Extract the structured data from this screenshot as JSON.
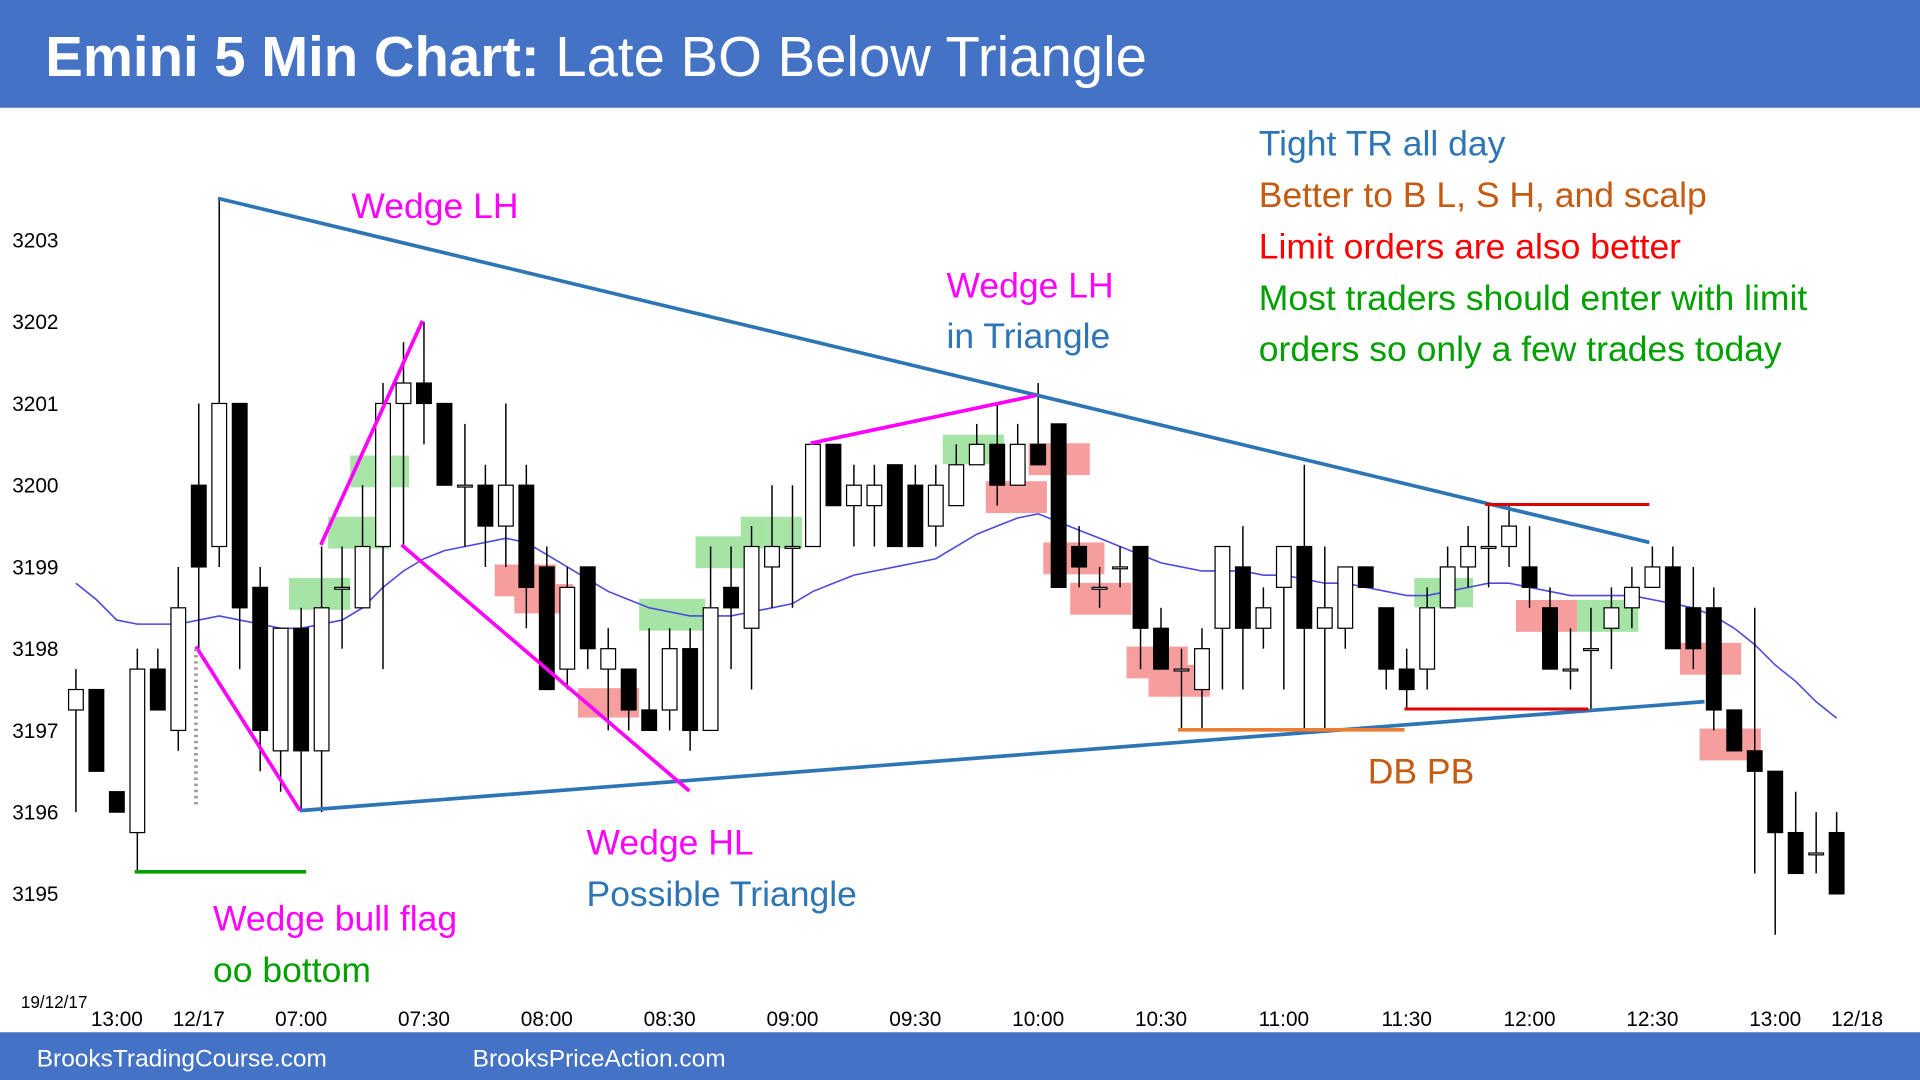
{
  "chart_data": {
    "type": "candlestick",
    "title": "Emini 5 Min Chart:",
    "subtitle": "Late BO Below Triangle",
    "date_label": "19/12/17",
    "footer": [
      "BrooksTradingCourse.com",
      "BrooksPriceAction.com"
    ],
    "annotations": [
      "Wedge LH",
      "Wedge LH",
      "in Triangle",
      "Tight TR all day",
      "Better to B L, S H, and scalp",
      "Limit orders are also better",
      "Most traders should enter with limit",
      "orders so only a few trades today",
      "DB PB",
      "Wedge HL",
      "Possible Triangle",
      "Wedge bull flag",
      "oo bottom"
    ],
    "categories": [
      null,
      null,
      "13:00",
      null,
      null,
      null,
      "12/17",
      null,
      null,
      null,
      null,
      "07:00",
      null,
      null,
      null,
      null,
      null,
      "07:30",
      null,
      null,
      null,
      null,
      null,
      "08:00",
      null,
      null,
      null,
      null,
      null,
      "08:30",
      null,
      null,
      null,
      null,
      null,
      "09:00",
      null,
      null,
      null,
      null,
      null,
      "09:30",
      null,
      null,
      null,
      null,
      null,
      "10:00",
      null,
      null,
      null,
      null,
      null,
      "10:30",
      null,
      null,
      null,
      null,
      null,
      "11:00",
      null,
      null,
      null,
      null,
      null,
      "11:30",
      null,
      null,
      null,
      null,
      null,
      "12:00",
      null,
      null,
      null,
      null,
      null,
      "12:30",
      null,
      null,
      null,
      null,
      null,
      "13:00",
      null,
      null,
      null,
      "12/18"
    ],
    "open": [
      3197.25,
      3197.5,
      3196.25,
      3195.75,
      3197.75,
      3197.0,
      3200.0,
      3199.25,
      3201.0,
      3198.75,
      3196.75,
      3198.25,
      3196.75,
      3198.75,
      3198.5,
      3199.25,
      3201.0,
      3201.25,
      3201.0,
      3200.0,
      3200.0,
      3199.5,
      3200.0,
      3199.0,
      3197.75,
      3199.0,
      3197.75,
      3197.75,
      3197.25,
      3197.25,
      3198.0,
      3197.0,
      3198.75,
      3198.25,
      3199.0,
      3199.25,
      3199.25,
      3200.5,
      3199.75,
      3199.75,
      3200.25,
      3200.0,
      3199.5,
      3199.75,
      3200.25,
      3200.5,
      3200.0,
      3200.5,
      3200.75,
      3199.25,
      3198.75,
      3199.0,
      3199.25,
      3198.25,
      3197.75,
      3197.5,
      3198.25,
      3199.0,
      3198.25,
      3198.75,
      3199.25,
      3198.25,
      3198.25,
      3199.0,
      3198.5,
      3197.75,
      3197.75,
      3198.5,
      3199.0,
      3199.25,
      3199.25,
      3199.0,
      3198.5,
      3197.75,
      3198.0,
      3198.25,
      3198.5,
      3198.75,
      3199.0,
      3198.5,
      3198.5,
      3197.25,
      3196.75,
      3196.5,
      3195.75,
      3195.5,
      3195.75,
      null
    ],
    "high": [
      3197.75,
      3197.5,
      3196.25,
      3198.0,
      3198.0,
      3199.0,
      3201.0,
      3203.5,
      3201.0,
      3199.0,
      3198.25,
      3198.5,
      3199.25,
      3199.25,
      3200.0,
      3201.25,
      3201.75,
      3202.0,
      3201.0,
      3200.75,
      3200.25,
      3201.0,
      3200.25,
      3199.25,
      3199.0,
      3199.0,
      3198.25,
      3197.75,
      3198.25,
      3198.25,
      3198.25,
      3199.25,
      3199.25,
      3199.5,
      3200.0,
      3200.0,
      3200.5,
      3200.5,
      3200.25,
      3200.25,
      3200.25,
      3200.25,
      3200.25,
      3200.5,
      3200.75,
      3201.0,
      3200.75,
      3201.25,
      3200.75,
      3199.5,
      3199.0,
      3199.25,
      3199.25,
      3198.5,
      3198.0,
      3198.25,
      3199.25,
      3199.5,
      3198.75,
      3199.25,
      3200.25,
      3199.25,
      3199.0,
      3199.0,
      3198.5,
      3198.0,
      3198.75,
      3199.25,
      3199.5,
      3199.75,
      3199.75,
      3199.5,
      3198.75,
      3198.25,
      3198.5,
      3198.75,
      3199.0,
      3199.25,
      3199.25,
      3199.0,
      3198.75,
      3197.25,
      3198.5,
      3196.5,
      3196.25,
      3196.0,
      3196.0,
      null
    ],
    "low": [
      3196.0,
      3196.5,
      3196.0,
      3195.25,
      3197.25,
      3196.75,
      3198.0,
      3199.0,
      3197.75,
      3196.5,
      3196.25,
      3196.0,
      3196.0,
      3198.0,
      3198.5,
      3197.75,
      3199.25,
      3200.5,
      3200.0,
      3199.25,
      3199.0,
      3199.0,
      3198.25,
      3197.5,
      3197.5,
      3197.75,
      3197.0,
      3197.0,
      3197.0,
      3197.0,
      3196.75,
      3197.0,
      3197.75,
      3197.5,
      3198.5,
      3198.5,
      3199.25,
      3199.75,
      3199.25,
      3199.25,
      3199.25,
      3199.25,
      3199.25,
      3199.75,
      3200.25,
      3199.75,
      3200.0,
      3200.25,
      3198.75,
      3198.75,
      3198.5,
      3198.75,
      3197.75,
      3197.75,
      3197.0,
      3197.0,
      3197.5,
      3197.5,
      3198.0,
      3197.5,
      3197.0,
      3197.0,
      3198.0,
      3198.75,
      3197.5,
      3197.25,
      3197.5,
      3198.5,
      3198.75,
      3198.75,
      3199.0,
      3198.5,
      3197.75,
      3197.5,
      3197.25,
      3197.75,
      3198.25,
      3198.75,
      3198.0,
      3197.75,
      3197.0,
      3196.75,
      3195.25,
      3194.5,
      3195.25,
      3195.25,
      3195.0,
      null
    ],
    "close": [
      3197.5,
      3196.5,
      3196.0,
      3197.75,
      3197.25,
      3198.5,
      3199.0,
      3201.0,
      3198.5,
      3197.0,
      3198.25,
      3196.75,
      3198.5,
      3198.75,
      3199.25,
      3201.0,
      3201.25,
      3201.0,
      3200.0,
      3200.0,
      3199.5,
      3200.0,
      3198.75,
      3197.5,
      3198.75,
      3198.0,
      3198.0,
      3197.25,
      3197.0,
      3198.0,
      3197.0,
      3198.5,
      3198.5,
      3199.25,
      3199.25,
      3199.25,
      3200.5,
      3199.75,
      3200.0,
      3200.0,
      3199.25,
      3199.25,
      3200.0,
      3200.25,
      3200.5,
      3200.0,
      3200.5,
      3200.25,
      3198.75,
      3199.0,
      3198.75,
      3199.0,
      3198.25,
      3197.75,
      3197.75,
      3198.0,
      3199.25,
      3198.25,
      3198.5,
      3199.25,
      3198.25,
      3198.5,
      3199.0,
      3198.75,
      3197.75,
      3197.5,
      3198.5,
      3199.0,
      3199.25,
      3199.25,
      3199.5,
      3198.75,
      3197.75,
      3197.75,
      3198.0,
      3198.5,
      3198.75,
      3199.0,
      3198.0,
      3198.0,
      3197.25,
      3196.75,
      3196.5,
      3195.75,
      3195.25,
      3195.5,
      3195.0,
      null
    ],
    "moving_average": {
      "color": "#4b4bdc",
      "values": [
        3198.8,
        3198.6,
        3198.35,
        3198.3,
        3198.3,
        3198.3,
        3198.35,
        3198.4,
        3198.35,
        3198.3,
        3198.25,
        3198.25,
        3198.3,
        3198.35,
        3198.5,
        3198.75,
        3198.95,
        3199.1,
        3199.2,
        3199.25,
        3199.3,
        3199.35,
        3199.3,
        3199.15,
        3199.0,
        3198.85,
        3198.7,
        3198.6,
        3198.5,
        3198.45,
        3198.4,
        3198.4,
        3198.4,
        3198.45,
        3198.5,
        3198.55,
        3198.7,
        3198.8,
        3198.9,
        3198.95,
        3199.0,
        3199.05,
        3199.1,
        3199.25,
        3199.4,
        3199.5,
        3199.6,
        3199.65,
        3199.55,
        3199.45,
        3199.35,
        3199.25,
        3199.15,
        3199.05,
        3199.0,
        3198.95,
        3198.95,
        3198.95,
        3198.9,
        3198.9,
        3198.85,
        3198.8,
        3198.8,
        3198.75,
        3198.7,
        3198.65,
        3198.65,
        3198.7,
        3198.75,
        3198.8,
        3198.8,
        3198.75,
        3198.7,
        3198.65,
        3198.65,
        3198.65,
        3198.65,
        3198.6,
        3198.55,
        3198.5,
        3198.4,
        3198.25,
        3198.05,
        3197.8,
        3197.6,
        3197.35,
        3197.15,
        null
      ]
    },
    "up_color": "#ffffff",
    "down_color": "#000000",
    "ylim": [
      3194.5,
      3204.5
    ],
    "yticks": [
      3195,
      3196,
      3197,
      3198,
      3199,
      3200,
      3201,
      3202,
      3203
    ],
    "grid": false
  }
}
